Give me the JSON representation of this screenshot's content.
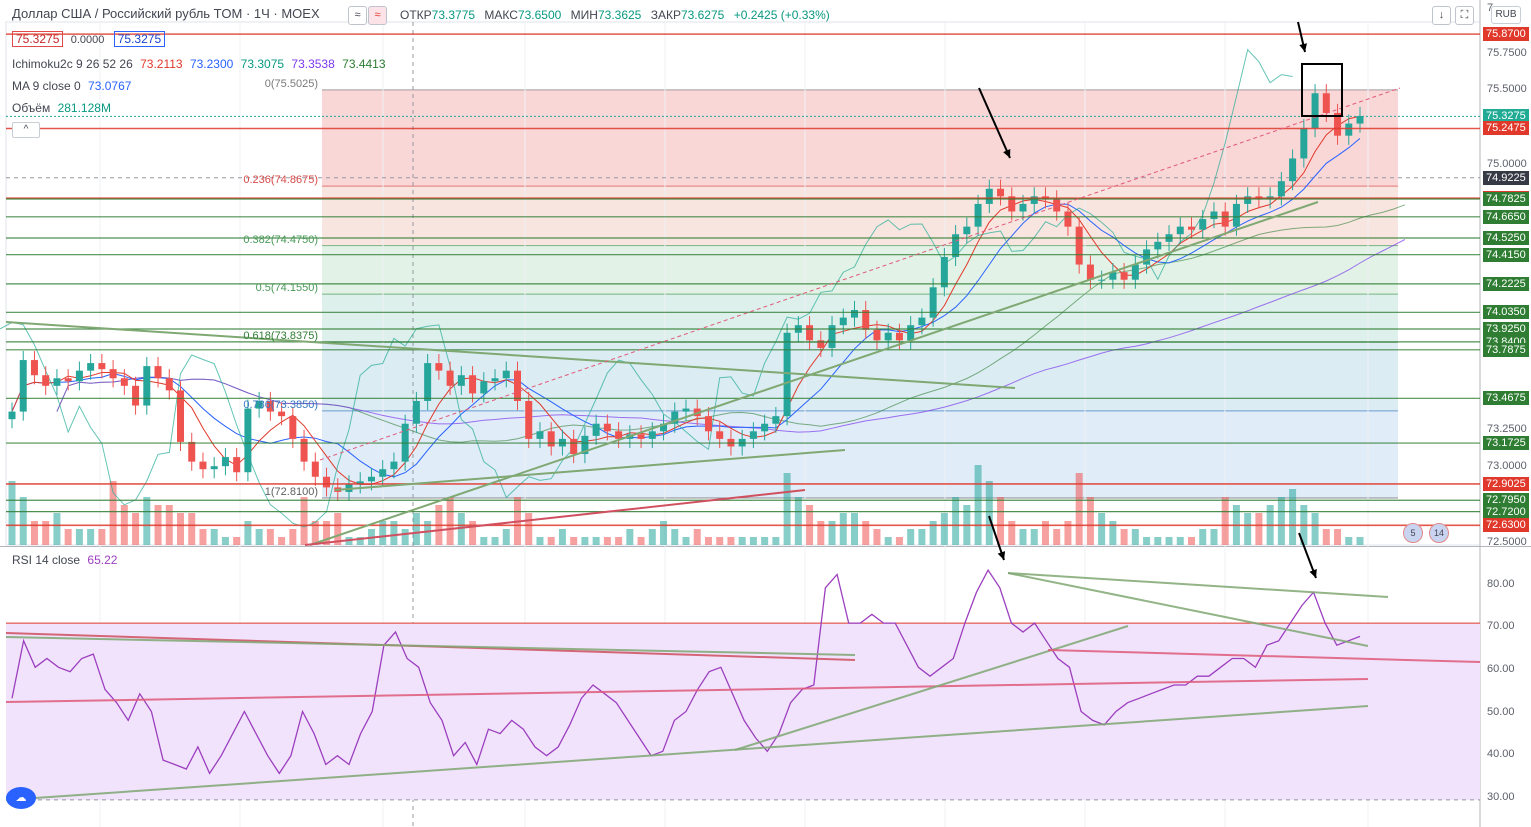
{
  "header": {
    "title": "Доллар США / Российский рубль TOM · 1Ч · MOEX",
    "open_label": "ОТКР",
    "open": "73.3775",
    "high_label": "МАКС",
    "high": "73.6500",
    "low_label": "МИН",
    "low": "73.3625",
    "close_label": "ЗАКР",
    "close": "73.6275",
    "change": "+0.2425 (+0.33%)",
    "sell_price": "75.3275",
    "spread": "0.0000",
    "buy_price": "75.3275",
    "currency_badge": "RUB",
    "icons": [
      "compare-icon",
      "download-icon",
      "fullscreen-icon"
    ]
  },
  "indicators": {
    "ichimoku_name": "Ichimoku2c 9 26 52 26",
    "ichimoku_values": [
      "73.2113",
      "73.2300",
      "73.3075",
      "73.3538",
      "73.4413"
    ],
    "ichimoku_colors": [
      "#e0392b",
      "#2962ff",
      "#089981",
      "#7c3aed",
      "#2e7d32"
    ],
    "ma_name": "MA 9 close 0",
    "ma_value": "73.0767",
    "volume_name": "Объём",
    "volume_value": "281.128M",
    "rsi_name": "RSI 14 close",
    "rsi_value": "65.22"
  },
  "fib_levels": [
    {
      "label": "0(75.5025)",
      "price": 75.5025
    },
    {
      "label": "0.236(74.8675)",
      "price": 74.8675
    },
    {
      "label": "0.382(74.4750)",
      "price": 74.475
    },
    {
      "label": "0.5(74.1550)",
      "price": 74.155
    },
    {
      "label": "0.618(73.8375)",
      "price": 73.8375
    },
    {
      "label": "0.786(73.3850)",
      "price": 73.385
    },
    {
      "label": "1(72.8100)",
      "price": 72.81
    }
  ],
  "price_axis": {
    "ticks": [
      "75.7500",
      "75.5000",
      "75.0000",
      "73.2500",
      "73.0000",
      "72.5000"
    ],
    "top_partial": "7"
  },
  "price_tags": [
    {
      "text": "75.8700",
      "price": 75.87,
      "color": "#e0392b"
    },
    {
      "text": "75.3275",
      "price": 75.3275,
      "color": "#22ab94"
    },
    {
      "text": "75.2475",
      "price": 75.2475,
      "color": "#e0392b"
    },
    {
      "text": "74.9225",
      "price": 74.9225,
      "color": "#363a45"
    },
    {
      "text": "74.7875",
      "price": 74.7875,
      "color": "#e0392b"
    },
    {
      "text": "74.7825",
      "price": 74.7825,
      "color": "#2e7d32"
    },
    {
      "text": "74.6650",
      "price": 74.665,
      "color": "#2e7d32"
    },
    {
      "text": "74.5250",
      "price": 74.525,
      "color": "#2e7d32"
    },
    {
      "text": "74.4150",
      "price": 74.415,
      "color": "#2e7d32"
    },
    {
      "text": "74.2225",
      "price": 74.2225,
      "color": "#2e7d32"
    },
    {
      "text": "74.0350",
      "price": 74.035,
      "color": "#2e7d32"
    },
    {
      "text": "73.9250",
      "price": 73.925,
      "color": "#2e7d32"
    },
    {
      "text": "73.8400",
      "price": 73.84,
      "color": "#2e7d32"
    },
    {
      "text": "73.7875",
      "price": 73.7875,
      "color": "#2e7d32"
    },
    {
      "text": "73.4675",
      "price": 73.4675,
      "color": "#2e7d32"
    },
    {
      "text": "73.1725",
      "price": 73.1725,
      "color": "#2e7d32"
    },
    {
      "text": "72.9025",
      "price": 72.9025,
      "color": "#e0392b"
    },
    {
      "text": "72.7950",
      "price": 72.795,
      "color": "#2e7d32"
    },
    {
      "text": "72.7200",
      "price": 72.72,
      "color": "#2e7d32"
    },
    {
      "text": "72.6300",
      "price": 72.63,
      "color": "#e0392b"
    }
  ],
  "rsi_axis": {
    "ticks": [
      "80.00",
      "70.00",
      "60.00",
      "50.00",
      "40.00",
      "30.00"
    ]
  },
  "event_badges": [
    "5",
    "4",
    "14"
  ],
  "colors": {
    "bull": "#26a69a",
    "bear": "#ef5350",
    "rsi": "#9c3fbf",
    "level_red": "#e0392b",
    "level_green": "#2e7d32",
    "trend": "#7fa872"
  },
  "chart_data": [
    {
      "type": "candlestick",
      "title": "Доллар США / Российский рубль TOM · 1Ч · MOEX",
      "ylim": [
        72.5,
        75.95
      ],
      "horizontal_levels": [
        75.87,
        75.2475,
        74.7875,
        74.7825,
        74.665,
        74.525,
        74.415,
        74.2225,
        74.035,
        73.925,
        73.84,
        73.7875,
        73.4675,
        73.1725,
        72.9025,
        72.795,
        72.72,
        72.63
      ],
      "current_price": 75.3275,
      "crosshair_price": 74.9225,
      "closes": [
        73.38,
        73.72,
        73.62,
        73.55,
        73.6,
        73.58,
        73.65,
        73.7,
        73.66,
        73.6,
        73.55,
        73.42,
        73.68,
        73.6,
        73.52,
        73.18,
        73.05,
        73.0,
        73.02,
        73.08,
        72.98,
        73.4,
        73.45,
        73.38,
        73.35,
        73.2,
        73.05,
        72.95,
        72.88,
        72.85,
        72.9,
        72.92,
        72.95,
        73.0,
        73.05,
        73.3,
        73.45,
        73.7,
        73.65,
        73.55,
        73.62,
        73.5,
        73.58,
        73.6,
        73.65,
        73.45,
        73.2,
        73.25,
        73.15,
        73.2,
        73.1,
        73.22,
        73.3,
        73.25,
        73.2,
        73.23,
        73.2,
        73.25,
        73.3,
        73.38,
        73.4,
        73.35,
        73.25,
        73.2,
        73.15,
        73.2,
        73.25,
        73.3,
        73.35,
        73.9,
        73.95,
        73.85,
        73.8,
        73.95,
        74.0,
        74.05,
        73.92,
        73.85,
        73.9,
        73.85,
        73.95,
        74.0,
        74.2,
        74.4,
        74.55,
        74.6,
        74.75,
        74.85,
        74.8,
        74.7,
        74.75,
        74.8,
        74.78,
        74.7,
        74.6,
        74.35,
        74.25,
        74.25,
        74.3,
        74.25,
        74.35,
        74.45,
        74.5,
        74.55,
        74.6,
        74.58,
        74.65,
        74.7,
        74.6,
        74.75,
        74.8,
        74.78,
        74.8,
        74.9,
        75.05,
        75.25,
        75.48,
        75.35,
        75.2,
        75.28,
        75.33
      ],
      "volume_closes": [
        0.8,
        0.6,
        0.3,
        0.3,
        0.4,
        0.2,
        0.2,
        0.2,
        0.2,
        0.8,
        0.5,
        0.4,
        0.6,
        0.5,
        0.5,
        0.4,
        0.4,
        0.2,
        0.2,
        0.1,
        0.1,
        0.3,
        0.2,
        0.2,
        0.1,
        0.2,
        0.6,
        0.3,
        0.3,
        0.4,
        0.1,
        0.1,
        0.2,
        0.3,
        0.3,
        0.2,
        0.4,
        0.3,
        0.5,
        0.6,
        0.4,
        0.3,
        0.1,
        0.1,
        0.2,
        0.6,
        0.4,
        0.1,
        0.1,
        0.2,
        0.1,
        0.1,
        0.1,
        0.1,
        0.1,
        0.2,
        0.1,
        0.2,
        0.3,
        0.2,
        0.1,
        0.2,
        0.1,
        0.1,
        0.1,
        0.1,
        0.1,
        0.1,
        0.1,
        0.9,
        0.6,
        0.5,
        0.3,
        0.3,
        0.4,
        0.4,
        0.3,
        0.2,
        0.1,
        0.1,
        0.2,
        0.2,
        0.3,
        0.4,
        0.6,
        0.5,
        1.0,
        0.8,
        0.6,
        0.3,
        0.2,
        0.2,
        0.3,
        0.2,
        0.3,
        0.9,
        0.6,
        0.4,
        0.3,
        0.2,
        0.2,
        0.1,
        0.1,
        0.1,
        0.1,
        0.1,
        0.2,
        0.2,
        0.6,
        0.5,
        0.4,
        0.4,
        0.5,
        0.6,
        0.7,
        0.5,
        0.4,
        0.2,
        0.2,
        0.1,
        0.1
      ]
    },
    {
      "type": "line",
      "title": "RSI 14 close",
      "ylim": [
        25,
        87
      ],
      "overbought": 70,
      "oversold": 30,
      "values": [
        53,
        66,
        60,
        62,
        60,
        59,
        62,
        63,
        55,
        52,
        48,
        54,
        50,
        39,
        38,
        37,
        42,
        36,
        40,
        45,
        50,
        45,
        40,
        36,
        40,
        50,
        45,
        38,
        40,
        38,
        45,
        50,
        65,
        68,
        62,
        60,
        52,
        48,
        40,
        43,
        38,
        46,
        45,
        48,
        46,
        42,
        40,
        42,
        47,
        53,
        56,
        54,
        52,
        48,
        44,
        40,
        41,
        48,
        50,
        55,
        59,
        60,
        54,
        48,
        44,
        41,
        45,
        52,
        55,
        56,
        78,
        81,
        70,
        70,
        72,
        70,
        70,
        65,
        60,
        58,
        60,
        62,
        70,
        77,
        82,
        78,
        70,
        68,
        70,
        66,
        62,
        60,
        50,
        48,
        47,
        50,
        52,
        53,
        54,
        55,
        56,
        56,
        58,
        58,
        60,
        62,
        62,
        60,
        65,
        66,
        70,
        74,
        77,
        70,
        65,
        66,
        67
      ]
    }
  ]
}
